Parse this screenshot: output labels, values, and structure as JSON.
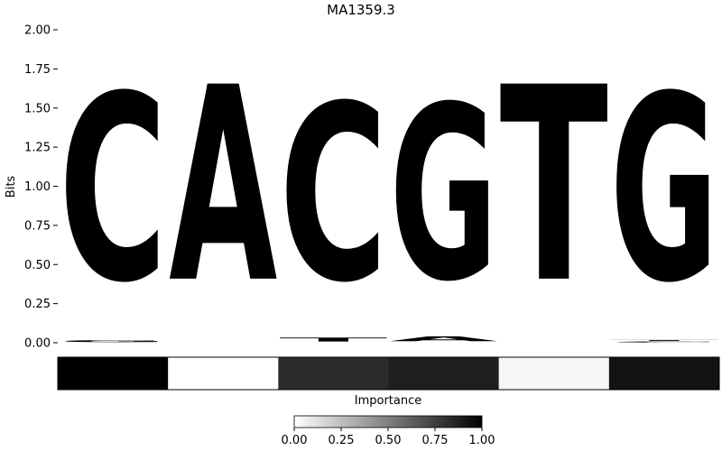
{
  "chart_data": {
    "type": "sequence-logo",
    "title": "MA1359.3",
    "ylabel": "Bits",
    "ylim": [
      0,
      2.0
    ],
    "yticks": [
      "0.00",
      "0.25",
      "0.50",
      "0.75",
      "1.00",
      "1.25",
      "1.50",
      "1.75",
      "2.00"
    ],
    "colors": {
      "A": "#4caa4c",
      "C": "#4c4cff",
      "G": "#ffc04c",
      "T": "#ff4c4c"
    },
    "positions": [
      {
        "stack": [
          {
            "base": "G",
            "bits": 0.02
          },
          {
            "base": "C",
            "bits": 1.91
          }
        ]
      },
      {
        "stack": [
          {
            "base": "A",
            "bits": 2.0
          }
        ]
      },
      {
        "stack": [
          {
            "base": "T",
            "bits": 0.04
          },
          {
            "base": "C",
            "bits": 1.81
          }
        ]
      },
      {
        "stack": [
          {
            "base": "A",
            "bits": 0.05
          },
          {
            "base": "G",
            "bits": 1.79
          }
        ]
      },
      {
        "stack": [
          {
            "base": "T",
            "bits": 2.0
          }
        ]
      },
      {
        "stack": [
          {
            "base": "C",
            "bits": 0.01
          },
          {
            "base": "T",
            "bits": 0.01
          },
          {
            "base": "G",
            "bits": 1.91
          }
        ]
      }
    ],
    "importance": {
      "label": "Importance",
      "values": [
        1.0,
        0.0,
        0.83,
        0.88,
        0.03,
        0.93
      ],
      "colorbar_ticks": [
        "0.00",
        "0.25",
        "0.50",
        "0.75",
        "1.00"
      ]
    }
  }
}
